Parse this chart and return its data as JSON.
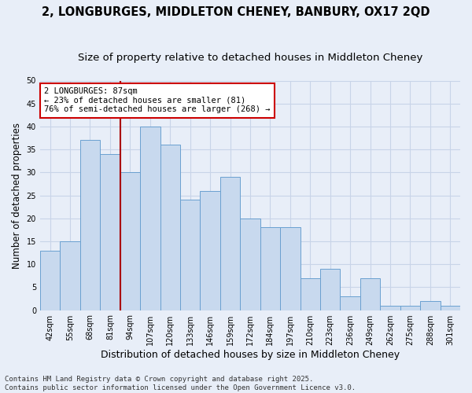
{
  "title": "2, LONGBURGES, MIDDLETON CHENEY, BANBURY, OX17 2QD",
  "subtitle": "Size of property relative to detached houses in Middleton Cheney",
  "xlabel": "Distribution of detached houses by size in Middleton Cheney",
  "ylabel": "Number of detached properties",
  "bar_values": [
    13,
    15,
    37,
    34,
    30,
    40,
    36,
    24,
    26,
    29,
    20,
    18,
    18,
    7,
    9,
    3,
    7,
    1,
    1,
    2,
    1
  ],
  "categories": [
    "42sqm",
    "55sqm",
    "68sqm",
    "81sqm",
    "94sqm",
    "107sqm",
    "120sqm",
    "133sqm",
    "146sqm",
    "159sqm",
    "172sqm",
    "184sqm",
    "197sqm",
    "210sqm",
    "223sqm",
    "236sqm",
    "249sqm",
    "262sqm",
    "275sqm",
    "288sqm",
    "301sqm"
  ],
  "bar_color": "#c8d9ee",
  "bar_edge_color": "#6aa0d0",
  "vline_index": 3.5,
  "vline_color": "#aa0000",
  "annotation_text": "2 LONGBURGES: 87sqm\n← 23% of detached houses are smaller (81)\n76% of semi-detached houses are larger (268) →",
  "annotation_box_color": "#ffffff",
  "annotation_box_edge": "#cc0000",
  "ylim": [
    0,
    50
  ],
  "yticks": [
    0,
    5,
    10,
    15,
    20,
    25,
    30,
    35,
    40,
    45,
    50
  ],
  "grid_color": "#c8d4e8",
  "background_color": "#e8eef8",
  "footer": "Contains HM Land Registry data © Crown copyright and database right 2025.\nContains public sector information licensed under the Open Government Licence v3.0.",
  "title_fontsize": 10.5,
  "subtitle_fontsize": 9.5,
  "xlabel_fontsize": 9,
  "ylabel_fontsize": 8.5,
  "tick_fontsize": 7,
  "annotation_fontsize": 7.5,
  "footer_fontsize": 6.5
}
